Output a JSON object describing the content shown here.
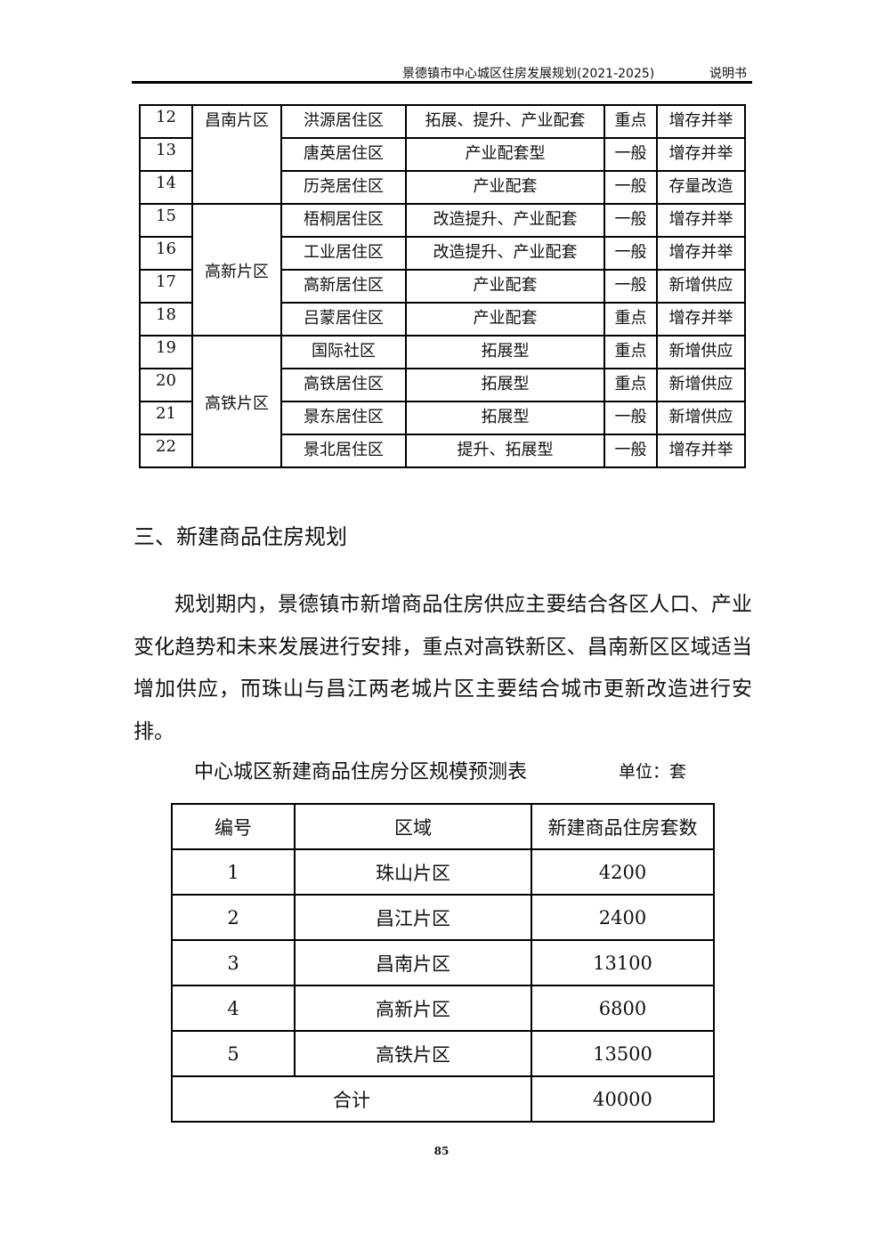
{
  "header": {
    "title": "景德镇市中心城区住房发展规划(2021-2025)",
    "doc_type": "说明书"
  },
  "table1": {
    "groups": [
      {
        "region": "昌南片区",
        "rows": [
          {
            "no": "12",
            "area": "洪源居住区",
            "type": "拓展、提升、产业配套",
            "level": "重点",
            "mode": "增存并举"
          },
          {
            "no": "13",
            "area": "唐英居住区",
            "type": "产业配套型",
            "level": "一般",
            "mode": "增存并举"
          },
          {
            "no": "14",
            "area": "历尧居住区",
            "type": "产业配套",
            "level": "一般",
            "mode": "存量改造"
          }
        ]
      },
      {
        "region": "高新片区",
        "rows": [
          {
            "no": "15",
            "area": "梧桐居住区",
            "type": "改造提升、产业配套",
            "level": "一般",
            "mode": "增存并举"
          },
          {
            "no": "16",
            "area": "工业居住区",
            "type": "改造提升、产业配套",
            "level": "一般",
            "mode": "增存并举"
          },
          {
            "no": "17",
            "area": "高新居住区",
            "type": "产业配套",
            "level": "一般",
            "mode": "新增供应"
          },
          {
            "no": "18",
            "area": "吕蒙居住区",
            "type": "产业配套",
            "level": "重点",
            "mode": "增存并举"
          }
        ]
      },
      {
        "region": "高铁片区",
        "rows": [
          {
            "no": "19",
            "area": "国际社区",
            "type": "拓展型",
            "level": "重点",
            "mode": "新增供应"
          },
          {
            "no": "20",
            "area": "高铁居住区",
            "type": "拓展型",
            "level": "重点",
            "mode": "新增供应"
          },
          {
            "no": "21",
            "area": "景东居住区",
            "type": "拓展型",
            "level": "一般",
            "mode": "新增供应"
          },
          {
            "no": "22",
            "area": "景北居住区",
            "type": "提升、拓展型",
            "level": "一般",
            "mode": "增存并举"
          }
        ]
      }
    ]
  },
  "section": {
    "heading": "三、新建商品住房规划",
    "paragraph": "规划期内，景德镇市新增商品住房供应主要结合各区人口、产业变化趋势和未来发展进行安排，重点对高铁新区、昌南新区区域适当增加供应，而珠山与昌江两老城片区主要结合城市更新改造进行安排。"
  },
  "table2": {
    "caption": "中心城区新建商品住房分区规模预测表",
    "unit": "单位：套",
    "headers": [
      "编号",
      "区域",
      "新建商品住房套数"
    ],
    "rows": [
      {
        "no": "1",
        "region": "珠山片区",
        "count": "4200"
      },
      {
        "no": "2",
        "region": "昌江片区",
        "count": "2400"
      },
      {
        "no": "3",
        "region": "昌南片区",
        "count": "13100"
      },
      {
        "no": "4",
        "region": "高新片区",
        "count": "6800"
      },
      {
        "no": "5",
        "region": "高铁片区",
        "count": "13500"
      }
    ],
    "total_label": "合计",
    "total": "40000"
  },
  "page_number": "85"
}
